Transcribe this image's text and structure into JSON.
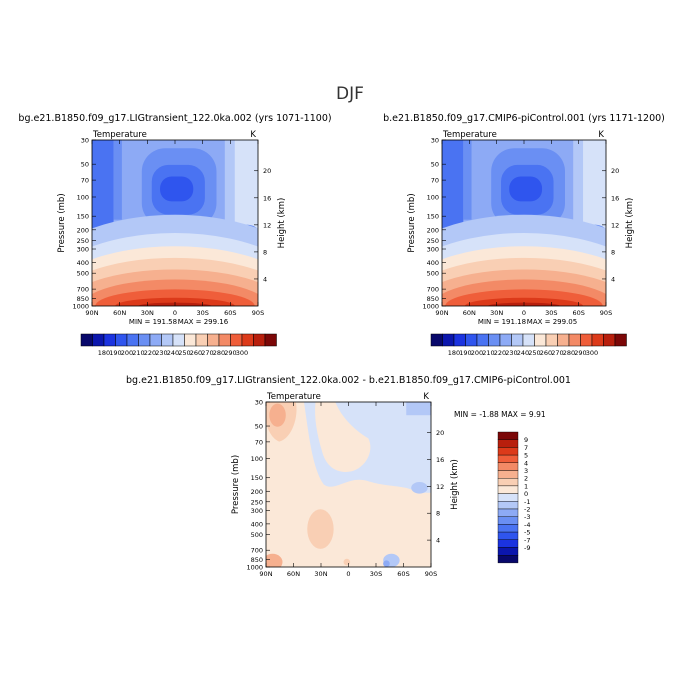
{
  "page": {
    "title": "DJF"
  },
  "palettes": {
    "abs_colors": [
      "#08086b",
      "#0b16ad",
      "#1b33e0",
      "#2f55ee",
      "#4a73f2",
      "#6a8ff3",
      "#8daaf5",
      "#b3c8f7",
      "#d6e2f9",
      "#fbe8d8",
      "#f9cfb4",
      "#f6b08f",
      "#f38a66",
      "#ef5e3a",
      "#dc3a1a",
      "#b81f0d",
      "#7b0707"
    ],
    "abs_labels": [
      "180",
      "190",
      "200",
      "210",
      "220",
      "230",
      "240",
      "250",
      "260",
      "270",
      "280",
      "290",
      "300"
    ],
    "diff_colors": [
      "#08086b",
      "#0b16ad",
      "#1b33e0",
      "#2f55ee",
      "#4a73f2",
      "#6a8ff3",
      "#8daaf5",
      "#b3c8f7",
      "#d6e2f9",
      "#fbe8d8",
      "#f9cfb4",
      "#f6b08f",
      "#f38a66",
      "#ef5e3a",
      "#dc3a1a",
      "#b81f0d",
      "#7b0707"
    ],
    "diff_labels": [
      "-9",
      "-7",
      "-5",
      "-4",
      "-3",
      "-2",
      "-1",
      "0",
      "1",
      "2",
      "3",
      "4",
      "5",
      "7",
      "9"
    ]
  },
  "chart_data": [
    {
      "type": "heatmap",
      "title": "bg.e21.B1850.f09_g17.LIGtransient_122.0ka.002 (yrs 1071-1100)",
      "subtitle": "Temperature",
      "units": "K",
      "xlabel": "",
      "ylabel": "Pressure (mb)",
      "ylabel_right": "Height (km)",
      "x_ticks": [
        "90N",
        "60N",
        "30N",
        "0",
        "30S",
        "60S",
        "90S"
      ],
      "y_ticks": [
        "30",
        "50",
        "70",
        "100",
        "150",
        "200",
        "250",
        "300",
        "400",
        "500",
        "700",
        "850",
        "1000"
      ],
      "y_ticks_right": [
        "20",
        "16",
        "12",
        "8",
        "4"
      ],
      "min_label": "MIN = 191.58",
      "max_label": "MAX = 299.16",
      "min": 191.58,
      "max": 299.16
    },
    {
      "type": "heatmap",
      "title": "b.e21.B1850.f09_g17.CMIP6-piControl.001 (yrs 1171-1200)",
      "subtitle": "Temperature",
      "units": "K",
      "xlabel": "",
      "ylabel": "Pressure (mb)",
      "ylabel_right": "Height (km)",
      "x_ticks": [
        "90N",
        "60N",
        "30N",
        "0",
        "30S",
        "60S",
        "90S"
      ],
      "y_ticks": [
        "30",
        "50",
        "70",
        "100",
        "150",
        "200",
        "250",
        "300",
        "400",
        "500",
        "700",
        "850",
        "1000"
      ],
      "y_ticks_right": [
        "20",
        "16",
        "12",
        "8",
        "4"
      ],
      "min_label": "MIN = 191.18",
      "max_label": "MAX = 299.05",
      "min": 191.18,
      "max": 299.05
    },
    {
      "type": "heatmap",
      "title": "bg.e21.B1850.f09_g17.LIGtransient_122.0ka.002 - b.e21.B1850.f09_g17.CMIP6-piControl.001",
      "subtitle": "Temperature",
      "units": "K",
      "xlabel": "",
      "ylabel": "Pressure (mb)",
      "ylabel_right": "Height (km)",
      "x_ticks": [
        "90N",
        "60N",
        "30N",
        "0",
        "30S",
        "60S",
        "90S"
      ],
      "y_ticks": [
        "30",
        "50",
        "70",
        "100",
        "150",
        "200",
        "250",
        "300",
        "400",
        "500",
        "700",
        "850",
        "1000"
      ],
      "y_ticks_right": [
        "20",
        "16",
        "12",
        "8",
        "4"
      ],
      "minmax_label": "MIN =   -1.88   MAX =    9.91",
      "min": -1.88,
      "max": 9.91
    }
  ]
}
